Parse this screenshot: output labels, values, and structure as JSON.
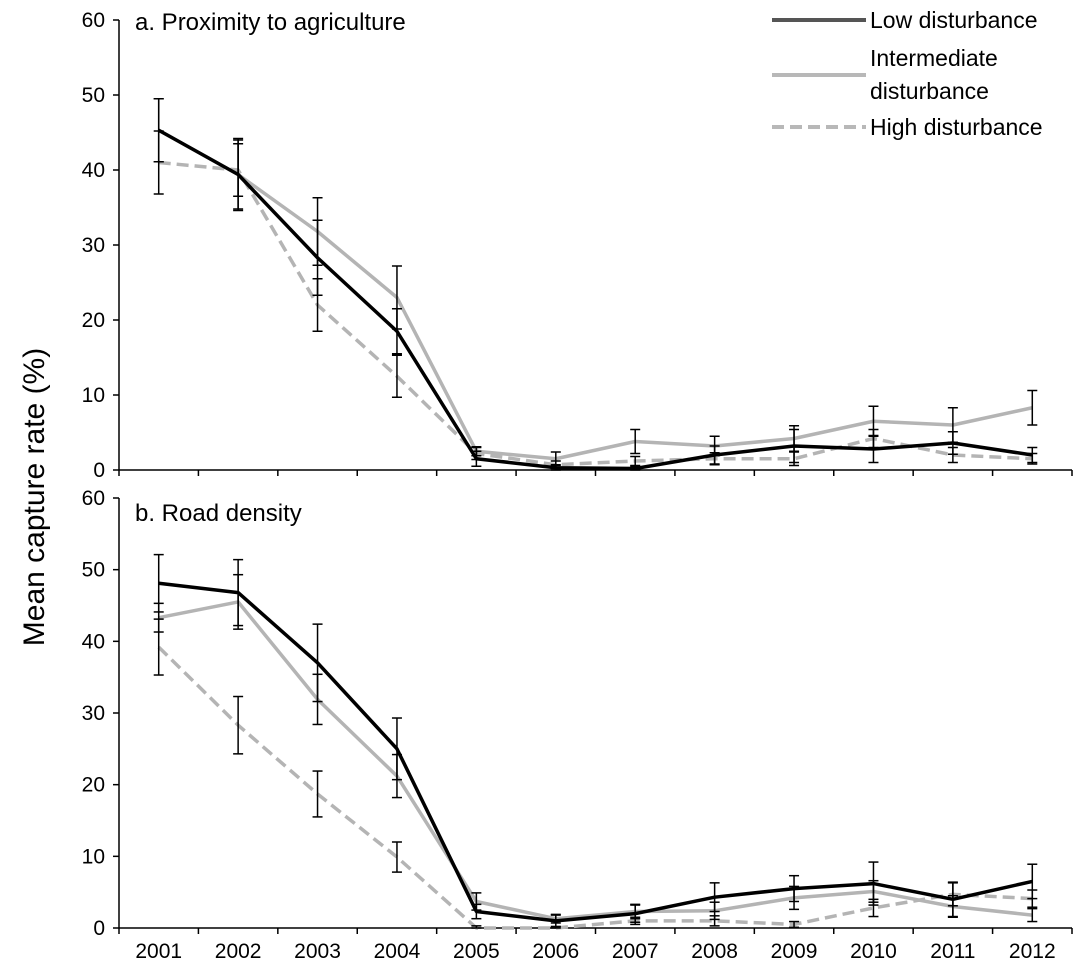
{
  "figure": {
    "ylabel": "Mean capture rate  (%)"
  },
  "legend": [
    {
      "name": "Low disturbance",
      "color": "#555555",
      "dash": false
    },
    {
      "name": "Intermediate disturbance",
      "lines": [
        "Intermediate",
        "disturbance"
      ],
      "color": "#b8b8b8",
      "dash": false
    },
    {
      "name": "High disturbance",
      "color": "#b8b8b8",
      "dash": true
    }
  ],
  "chart_data": [
    {
      "type": "line",
      "title": "a. Proximity to agriculture",
      "x": [
        2001,
        2002,
        2003,
        2004,
        2005,
        2006,
        2007,
        2008,
        2009,
        2010,
        2011,
        2012
      ],
      "ylim": [
        0,
        60
      ],
      "yticks": [
        0,
        10,
        20,
        30,
        40,
        50,
        60
      ],
      "ylabel": "Mean capture rate  (%)",
      "grid": false,
      "legend_position": "top-right",
      "series": [
        {
          "name": "Low disturbance",
          "color": "#000000",
          "dash": false,
          "values": [
            45.3,
            39.4,
            28.3,
            18.5,
            1.5,
            0.3,
            0.2,
            2.0,
            3.2,
            2.8,
            3.6,
            2.0
          ],
          "errors": [
            4.2,
            4.8,
            5.0,
            3.0,
            1.0,
            0.4,
            0.3,
            1.2,
            2.2,
            1.8,
            1.5,
            1.0
          ]
        },
        {
          "name": "Intermediate disturbance",
          "color": "#b4b4b4",
          "dash": false,
          "values": [
            45.3,
            39.4,
            31.8,
            23.0,
            2.5,
            1.5,
            3.8,
            3.2,
            4.2,
            6.5,
            6.0,
            8.3
          ],
          "errors": [
            4.2,
            4.6,
            4.5,
            4.2,
            0.6,
            0.9,
            1.6,
            1.3,
            1.7,
            2.0,
            2.3,
            2.3
          ]
        },
        {
          "name": "High disturbance",
          "color": "#b4b4b4",
          "dash": true,
          "values": [
            41.0,
            40.0,
            22.0,
            12.5,
            2.2,
            0.7,
            1.2,
            1.5,
            1.5,
            4.2,
            2.0,
            1.5
          ],
          "errors": [
            4.2,
            3.5,
            3.5,
            2.8,
            0.8,
            0.5,
            0.6,
            0.8,
            0.9,
            1.2,
            1.0,
            0.7
          ]
        }
      ]
    },
    {
      "type": "line",
      "title": "b. Road density",
      "x": [
        2001,
        2002,
        2003,
        2004,
        2005,
        2006,
        2007,
        2008,
        2009,
        2010,
        2011,
        2012
      ],
      "ylim": [
        0,
        60
      ],
      "yticks": [
        0,
        10,
        20,
        30,
        40,
        50,
        60
      ],
      "xlabel": "",
      "grid": false,
      "series": [
        {
          "name": "Low disturbance",
          "color": "#000000",
          "dash": false,
          "values": [
            48.1,
            46.8,
            37.0,
            25.0,
            2.3,
            1.0,
            2.0,
            4.3,
            5.5,
            6.2,
            4.0,
            6.5
          ],
          "errors": [
            4.0,
            4.6,
            5.4,
            4.3,
            1.0,
            0.8,
            1.2,
            2.0,
            1.8,
            3.0,
            2.4,
            2.4
          ]
        },
        {
          "name": "Intermediate disturbance",
          "color": "#b4b4b4",
          "dash": false,
          "values": [
            43.3,
            45.5,
            31.9,
            21.2,
            3.7,
            1.3,
            2.3,
            2.4,
            4.2,
            5.1,
            3.0,
            1.8
          ],
          "errors": [
            2.0,
            3.8,
            3.5,
            3.0,
            1.2,
            0.6,
            1.0,
            1.2,
            1.6,
            1.5,
            1.5,
            0.9
          ]
        },
        {
          "name": "High disturbance",
          "color": "#b4b4b4",
          "dash": true,
          "values": [
            39.2,
            28.3,
            18.7,
            9.9,
            0.0,
            0.0,
            1.0,
            1.0,
            0.5,
            2.8,
            4.7,
            4.1
          ],
          "errors": [
            3.9,
            4.0,
            3.2,
            2.1,
            0.3,
            0.2,
            0.5,
            0.7,
            0.4,
            1.2,
            1.6,
            1.2
          ]
        }
      ]
    }
  ]
}
